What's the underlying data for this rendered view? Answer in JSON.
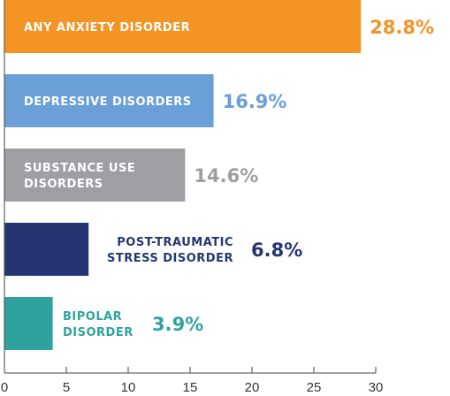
{
  "chart_data": {
    "type": "bar",
    "orientation": "horizontal",
    "categories": [
      "ANY ANXIETY DISORDER",
      "DEPRESSIVE DISORDERS",
      "SUBSTANCE USE DISORDERS",
      "POST-TRAUMATIC STRESS DISORDER",
      "BIPOLAR DISORDER"
    ],
    "category_lines": [
      [
        "ANY ANXIETY DISORDER"
      ],
      [
        "DEPRESSIVE DISORDERS"
      ],
      [
        "SUBSTANCE USE",
        "DISORDERS"
      ],
      [
        "POST-TRAUMATIC",
        "STRESS DISORDER"
      ],
      [
        "BIPOLAR",
        "DISORDER"
      ]
    ],
    "values": [
      28.8,
      16.9,
      14.6,
      6.8,
      3.9
    ],
    "value_labels": [
      "28.8%",
      "16.9%",
      "14.6%",
      "6.8%",
      "3.9%"
    ],
    "colors": [
      "#f39425",
      "#6a9fd8",
      "#9d9fa2",
      "#253572",
      "#2ea39d"
    ],
    "label_inside": [
      true,
      true,
      true,
      false,
      false
    ],
    "xlim": [
      0,
      30
    ],
    "xticks": [
      "0",
      "5",
      "10",
      "15",
      "20",
      "25",
      "30"
    ],
    "title": "",
    "xlabel": "",
    "ylabel": "",
    "grid": false
  }
}
